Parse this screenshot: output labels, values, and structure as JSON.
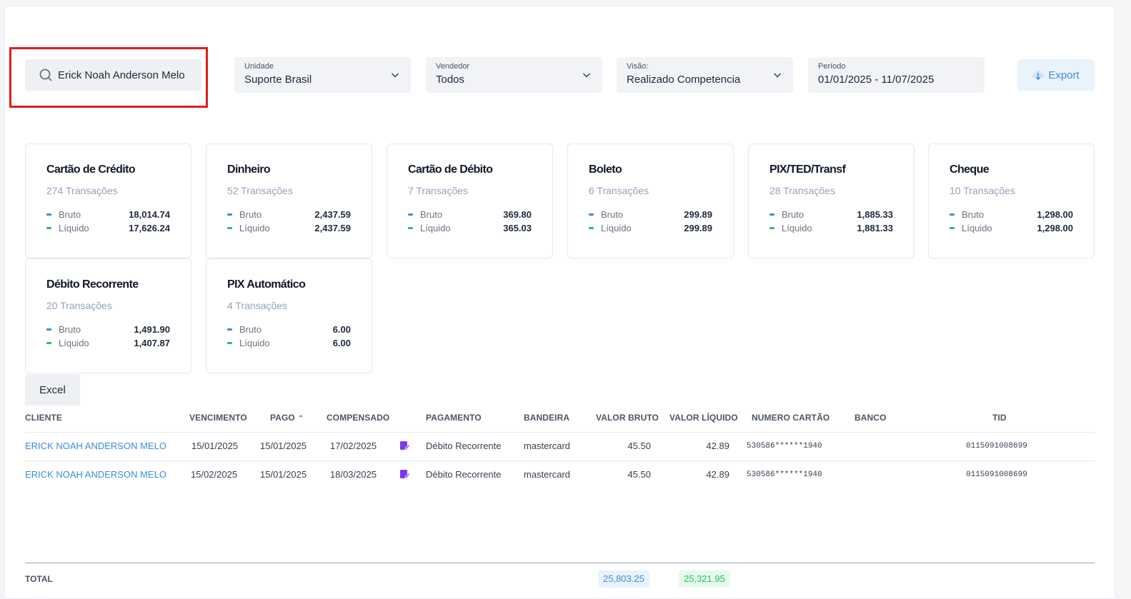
{
  "search": {
    "value": "Erick Noah Anderson Melo"
  },
  "filters": {
    "unidade": {
      "label": "Unidade",
      "value": "Suporte Brasil"
    },
    "vendedor": {
      "label": "Vendedor",
      "value": "Todos"
    },
    "visao": {
      "label": "Visão:",
      "value": "Realizado Competencia"
    },
    "periodo": {
      "label": "Período",
      "value": "01/01/2025 - 11/07/2025"
    }
  },
  "export_label": "Export",
  "bruto_label": "Bruto",
  "liquido_label": "Líquido",
  "cards": [
    {
      "title": "Cartão de Crédito",
      "count": "274 Transações",
      "bruto": "18,014.74",
      "liquido": "17,626.24"
    },
    {
      "title": "Dinheiro",
      "count": "52 Transações",
      "bruto": "2,437.59",
      "liquido": "2,437.59"
    },
    {
      "title": "Cartão de Débito",
      "count": "7 Transações",
      "bruto": "369.80",
      "liquido": "365.03"
    },
    {
      "title": "Boleto",
      "count": "6 Transações",
      "bruto": "299.89",
      "liquido": "299.89"
    },
    {
      "title": "PIX/TED/Transf",
      "count": "28 Transações",
      "bruto": "1,885.33",
      "liquido": "1,881.33"
    },
    {
      "title": "Cheque",
      "count": "10 Transações",
      "bruto": "1,298.00",
      "liquido": "1,298.00"
    },
    {
      "title": "Débito Recorrente",
      "count": "20 Transações",
      "bruto": "1,491.90",
      "liquido": "1,407.87"
    },
    {
      "title": "PIX Automático",
      "count": "4 Transações",
      "bruto": "6.00",
      "liquido": "6.00"
    }
  ],
  "excel_label": "Excel",
  "table": {
    "headers": {
      "cliente": "CLIENTE",
      "vencimento": "VENCIMENTO",
      "pago": "PAGO",
      "compensado": "COMPENSADO",
      "pagamento": "PAGAMENTO",
      "bandeira": "BANDEIRA",
      "valor_bruto": "VALOR BRUTO",
      "valor_liquido": "VALOR LÍQUIDO",
      "numero_cartao": "NUMERO CARTÃO",
      "banco": "BANCO",
      "tid": "TID"
    },
    "rows": [
      {
        "cliente": "ERICK NOAH ANDERSON MELO",
        "vencimento": "15/01/2025",
        "pago": "15/01/2025",
        "compensado": "17/02/2025",
        "pagamento": "Débito Recorrente",
        "bandeira": "mastercard",
        "valor_bruto": "45.50",
        "valor_liquido": "42.89",
        "numero_cartao": "530586******1940",
        "banco": "",
        "tid": "0115091008699"
      },
      {
        "cliente": "ERICK NOAH ANDERSON MELO",
        "vencimento": "15/02/2025",
        "pago": "15/01/2025",
        "compensado": "18/03/2025",
        "pagamento": "Débito Recorrente",
        "bandeira": "mastercard",
        "valor_bruto": "45.50",
        "valor_liquido": "42.89",
        "numero_cartao": "530586******1940",
        "banco": "",
        "tid": "0115091008699"
      }
    ]
  },
  "totals": {
    "label": "TOTAL",
    "bruto": "25,803.25",
    "liquido": "25,321.95"
  },
  "colors": {
    "accent_blue": "#3b8ed8",
    "accent_green": "#22c55e",
    "highlight_red": "#e11d1d",
    "pay_icon_purple": "#7c3aed"
  }
}
